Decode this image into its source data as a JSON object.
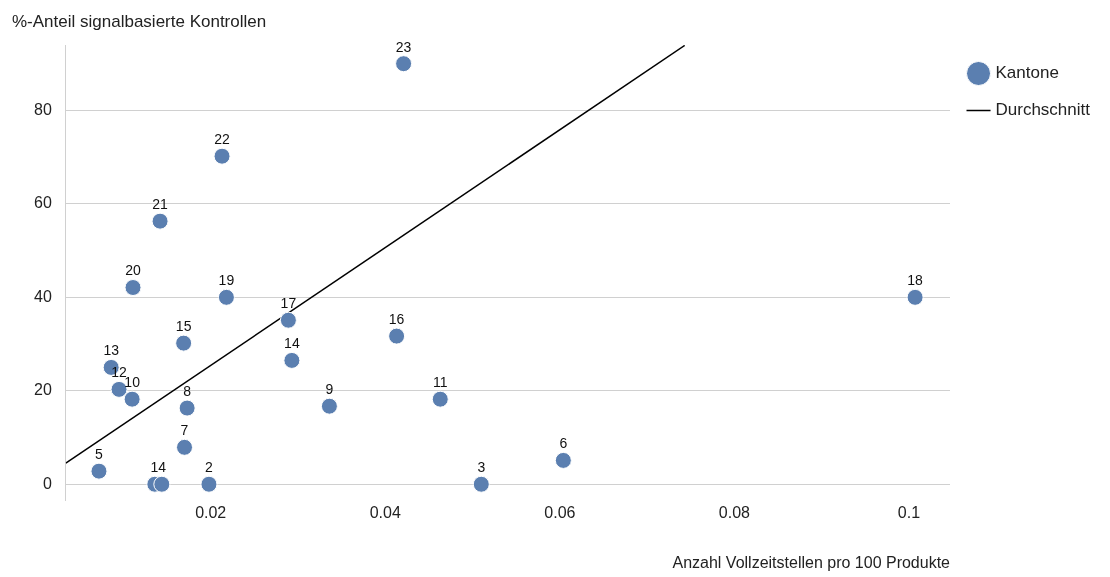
{
  "chart_data": {
    "type": "scatter",
    "ylabel": "%-Anteil signalbasierte Kontrollen",
    "xlabel": "Anzahl Vollzeitstellen pro 100 Produkte",
    "xlim": [
      0.0034,
      0.1047
    ],
    "xticks": [
      0.02,
      0.04,
      0.06,
      0.08,
      0.1
    ],
    "ylim": [
      -3.5,
      94
    ],
    "yticks": [
      0,
      20,
      40,
      60,
      80
    ],
    "grid": "y",
    "legend": "right",
    "marker": "circle",
    "series": [
      {
        "name": "Kantone",
        "color": "#5b7fb0",
        "x": [
          0.0136,
          0.0198,
          0.051,
          0.0144,
          0.0072,
          0.0604,
          0.017,
          0.0173,
          0.0336,
          0.011,
          0.0463,
          0.0095,
          0.0086,
          0.0293,
          0.0169,
          0.0413,
          0.0289,
          0.1007,
          0.0218,
          0.0111,
          0.0142,
          0.0213,
          0.0421
        ],
        "values": [
          0,
          0,
          0,
          0,
          2.8,
          5.1,
          7.9,
          16.3,
          16.7,
          18.2,
          18.2,
          20.3,
          25,
          26.5,
          30.2,
          31.7,
          35.1,
          40,
          40,
          42.1,
          56.3,
          70.2,
          90
        ]
      },
      {
        "name": "Durchschnitt",
        "color": "#000000",
        "type": "line",
        "marker": "none",
        "x": [
          0.0034,
          0.0743
        ],
        "values": [
          4.5,
          93.9
        ]
      }
    ],
    "annotations": [
      {
        "text": "14",
        "x": 0.014,
        "y": 0
      },
      {
        "text": "2",
        "x": 0.0198,
        "y": 0
      },
      {
        "text": "3",
        "x": 0.051,
        "y": 0
      },
      {
        "text": "5",
        "x": 0.0072,
        "y": 2.8
      },
      {
        "text": "6",
        "x": 0.0604,
        "y": 5.1
      },
      {
        "text": "7",
        "x": 0.017,
        "y": 7.9
      },
      {
        "text": "8",
        "x": 0.0173,
        "y": 16.3
      },
      {
        "text": "9",
        "x": 0.0336,
        "y": 16.7
      },
      {
        "text": "10",
        "x": 0.011,
        "y": 18.2
      },
      {
        "text": "11",
        "x": 0.0463,
        "y": 18.2
      },
      {
        "text": "12",
        "x": 0.0095,
        "y": 20.3
      },
      {
        "text": "13",
        "x": 0.0086,
        "y": 25
      },
      {
        "text": "14",
        "x": 0.0293,
        "y": 26.5
      },
      {
        "text": "15",
        "x": 0.0169,
        "y": 30.2
      },
      {
        "text": "16",
        "x": 0.0413,
        "y": 31.7
      },
      {
        "text": "17",
        "x": 0.0289,
        "y": 35.1
      },
      {
        "text": "18",
        "x": 0.1007,
        "y": 40
      },
      {
        "text": "19",
        "x": 0.0218,
        "y": 40
      },
      {
        "text": "20",
        "x": 0.0111,
        "y": 42.1
      },
      {
        "text": "21",
        "x": 0.0142,
        "y": 56.3
      },
      {
        "text": "22",
        "x": 0.0213,
        "y": 70.2
      },
      {
        "text": "23",
        "x": 0.0421,
        "y": 90
      }
    ]
  }
}
